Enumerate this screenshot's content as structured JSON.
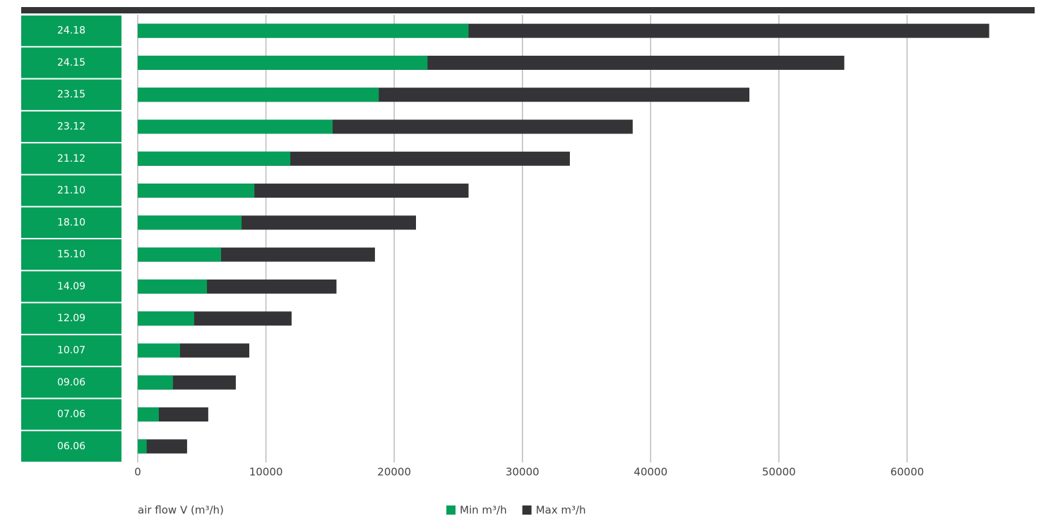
{
  "chart_data": {
    "type": "bar",
    "orientation": "horizontal",
    "categories": [
      "24.18",
      "24.15",
      "23.15",
      "23.12",
      "21.12",
      "21.10",
      "18.10",
      "15.10",
      "14.09",
      "12.09",
      "10.07",
      "09.06",
      "07.06",
      "06.06"
    ],
    "series": [
      {
        "name": "Max m³/h",
        "color": "#343336",
        "values": [
          66400,
          55100,
          47700,
          38600,
          33700,
          25800,
          21700,
          18500,
          15500,
          12000,
          8700,
          7650,
          5500,
          3850
        ]
      },
      {
        "name": "Min m³/h",
        "color": "#069f5a",
        "values": [
          25800,
          22600,
          18800,
          15200,
          11900,
          9100,
          8100,
          6500,
          5400,
          4400,
          3300,
          2750,
          1650,
          700
        ]
      }
    ],
    "xlabel": "air flow V (m³/h)",
    "xlim": [
      0,
      70000
    ],
    "xticks": [
      0,
      10000,
      20000,
      30000,
      40000,
      50000,
      60000
    ],
    "grid": true
  }
}
